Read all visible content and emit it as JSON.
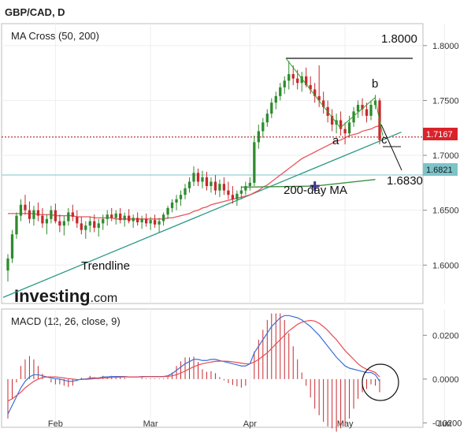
{
  "header": {
    "title": "GBP/CAD, D"
  },
  "price_panel": {
    "indicator_label": "MA Cross (50, 200)",
    "watermark_main": "Investing",
    "watermark_suffix": ".com",
    "annotations": {
      "level_1800": "1.8000",
      "level_1683": "1.6830",
      "ma200": "200-day MA",
      "trendline": "Trendline",
      "a": "a",
      "b": "b",
      "c": "c"
    },
    "price_tag_red": {
      "text": "1.7167",
      "color": "#d9232b"
    },
    "price_tag_teal": {
      "text": "1.6821",
      "color": "#7dc4c9"
    }
  },
  "macd_panel": {
    "label": "MACD (12, 26, close, 9)"
  },
  "colors": {
    "bull": "#2e8b2e",
    "bear": "#c8282d",
    "ma_red": "#e8545a",
    "ma_green": "#3f8f3f",
    "trendline": "#2c9a86",
    "macd_blue": "#3a6fd8",
    "signal_red": "#e84a50"
  },
  "chart_data": [
    {
      "type": "candlestick",
      "title": "GBP/CAD, D",
      "indicator": "MA Cross (50, 200)",
      "ylim": [
        1.565,
        1.82
      ],
      "y_ticks": [
        1.6,
        1.65,
        1.7,
        1.75,
        1.8
      ],
      "y_tick_labels": [
        "1.6000",
        "1.6500",
        "1.7000",
        "1.7500",
        "1.8000"
      ],
      "x_tick_labels": [
        "Feb",
        "Mar",
        "Apr",
        "May",
        "Jun"
      ],
      "x_tick_index": [
        11,
        33,
        56,
        78,
        101
      ],
      "candles": [
        [
          1.595,
          1.61,
          1.585,
          1.606
        ],
        [
          1.606,
          1.632,
          1.602,
          1.628
        ],
        [
          1.628,
          1.648,
          1.624,
          1.645
        ],
        [
          1.645,
          1.66,
          1.64,
          1.655
        ],
        [
          1.655,
          1.664,
          1.646,
          1.65
        ],
        [
          1.65,
          1.658,
          1.638,
          1.642
        ],
        [
          1.642,
          1.654,
          1.636,
          1.65
        ],
        [
          1.65,
          1.657,
          1.64,
          1.645
        ],
        [
          1.645,
          1.652,
          1.634,
          1.638
        ],
        [
          1.638,
          1.646,
          1.628,
          1.642
        ],
        [
          1.642,
          1.654,
          1.638,
          1.65
        ],
        [
          1.65,
          1.656,
          1.638,
          1.64
        ],
        [
          1.64,
          1.646,
          1.63,
          1.636
        ],
        [
          1.636,
          1.645,
          1.627,
          1.64
        ],
        [
          1.64,
          1.652,
          1.636,
          1.648
        ],
        [
          1.648,
          1.655,
          1.64,
          1.644
        ],
        [
          1.644,
          1.65,
          1.634,
          1.638
        ],
        [
          1.638,
          1.644,
          1.628,
          1.632
        ],
        [
          1.632,
          1.64,
          1.624,
          1.636
        ],
        [
          1.636,
          1.644,
          1.63,
          1.64
        ],
        [
          1.64,
          1.646,
          1.63,
          1.634
        ],
        [
          1.634,
          1.642,
          1.626,
          1.638
        ],
        [
          1.638,
          1.646,
          1.632,
          1.642
        ],
        [
          1.642,
          1.65,
          1.636,
          1.646
        ],
        [
          1.646,
          1.652,
          1.64,
          1.643
        ],
        [
          1.643,
          1.65,
          1.637,
          1.647
        ],
        [
          1.647,
          1.652,
          1.638,
          1.641
        ],
        [
          1.641,
          1.648,
          1.635,
          1.645
        ],
        [
          1.645,
          1.651,
          1.638,
          1.64
        ],
        [
          1.64,
          1.646,
          1.634,
          1.643
        ],
        [
          1.643,
          1.648,
          1.636,
          1.639
        ],
        [
          1.639,
          1.645,
          1.633,
          1.642
        ],
        [
          1.642,
          1.647,
          1.635,
          1.638
        ],
        [
          1.638,
          1.644,
          1.632,
          1.641
        ],
        [
          1.641,
          1.646,
          1.634,
          1.637
        ],
        [
          1.637,
          1.643,
          1.63,
          1.64
        ],
        [
          1.64,
          1.648,
          1.636,
          1.646
        ],
        [
          1.646,
          1.654,
          1.642,
          1.652
        ],
        [
          1.652,
          1.66,
          1.648,
          1.657
        ],
        [
          1.657,
          1.664,
          1.65,
          1.66
        ],
        [
          1.66,
          1.668,
          1.654,
          1.664
        ],
        [
          1.664,
          1.674,
          1.66,
          1.67
        ],
        [
          1.67,
          1.68,
          1.666,
          1.676
        ],
        [
          1.676,
          1.69,
          1.672,
          1.684
        ],
        [
          1.684,
          1.688,
          1.672,
          1.676
        ],
        [
          1.676,
          1.686,
          1.67,
          1.68
        ],
        [
          1.68,
          1.685,
          1.668,
          1.672
        ],
        [
          1.672,
          1.68,
          1.666,
          1.676
        ],
        [
          1.676,
          1.682,
          1.664,
          1.668
        ],
        [
          1.668,
          1.678,
          1.662,
          1.674
        ],
        [
          1.674,
          1.68,
          1.664,
          1.668
        ],
        [
          1.668,
          1.676,
          1.66,
          1.664
        ],
        [
          1.664,
          1.672,
          1.656,
          1.66
        ],
        [
          1.66,
          1.668,
          1.654,
          1.665
        ],
        [
          1.665,
          1.672,
          1.66,
          1.668
        ],
        [
          1.668,
          1.676,
          1.664,
          1.672
        ],
        [
          1.672,
          1.68,
          1.668,
          1.675
        ],
        [
          1.675,
          1.718,
          1.672,
          1.712
        ],
        [
          1.712,
          1.728,
          1.706,
          1.722
        ],
        [
          1.722,
          1.734,
          1.716,
          1.73
        ],
        [
          1.73,
          1.742,
          1.726,
          1.738
        ],
        [
          1.738,
          1.752,
          1.734,
          1.748
        ],
        [
          1.748,
          1.758,
          1.742,
          1.754
        ],
        [
          1.754,
          1.766,
          1.75,
          1.762
        ],
        [
          1.762,
          1.772,
          1.756,
          1.768
        ],
        [
          1.768,
          1.786,
          1.76,
          1.774
        ],
        [
          1.774,
          1.782,
          1.764,
          1.77
        ],
        [
          1.77,
          1.778,
          1.76,
          1.766
        ],
        [
          1.766,
          1.776,
          1.758,
          1.772
        ],
        [
          1.772,
          1.78,
          1.762,
          1.764
        ],
        [
          1.764,
          1.772,
          1.756,
          1.76
        ],
        [
          1.76,
          1.766,
          1.748,
          1.754
        ],
        [
          1.754,
          1.782,
          1.744,
          1.75
        ],
        [
          1.75,
          1.758,
          1.738,
          1.744
        ],
        [
          1.744,
          1.75,
          1.73,
          1.736
        ],
        [
          1.736,
          1.742,
          1.722,
          1.728
        ],
        [
          1.728,
          1.738,
          1.72,
          1.732
        ],
        [
          1.732,
          1.74,
          1.718,
          1.724
        ],
        [
          1.724,
          1.73,
          1.71,
          1.72
        ],
        [
          1.72,
          1.736,
          1.716,
          1.73
        ],
        [
          1.73,
          1.744,
          1.726,
          1.74
        ],
        [
          1.74,
          1.75,
          1.734,
          1.746
        ],
        [
          1.746,
          1.752,
          1.736,
          1.742
        ],
        [
          1.742,
          1.748,
          1.73,
          1.736
        ],
        [
          1.736,
          1.75,
          1.732,
          1.746
        ],
        [
          1.746,
          1.755,
          1.742,
          1.75
        ],
        [
          1.75,
          1.752,
          1.71,
          1.714
        ]
      ],
      "ma_red": [
        1.647,
        1.647,
        1.647,
        1.647,
        1.647,
        1.647,
        1.647,
        1.646,
        1.646,
        1.646,
        1.646,
        1.645,
        1.645,
        1.645,
        1.645,
        1.645,
        1.644,
        1.644,
        1.644,
        1.644,
        1.643,
        1.643,
        1.643,
        1.643,
        1.643,
        1.642,
        1.642,
        1.642,
        1.642,
        1.642,
        1.642,
        1.642,
        1.642,
        1.642,
        1.642,
        1.642,
        1.642,
        1.643,
        1.643,
        1.644,
        1.645,
        1.646,
        1.647,
        1.649,
        1.65,
        1.652,
        1.653,
        1.655,
        1.656,
        1.657,
        1.658,
        1.659,
        1.66,
        1.661,
        1.662,
        1.663,
        1.664,
        1.666,
        1.668,
        1.671,
        1.673,
        1.676,
        1.679,
        1.682,
        1.685,
        1.688,
        1.691,
        1.694,
        1.697,
        1.699,
        1.701,
        1.703,
        1.705,
        1.707,
        1.709,
        1.711,
        1.713,
        1.714,
        1.716,
        1.718,
        1.719,
        1.72,
        1.722,
        1.723,
        1.724,
        1.726,
        1.727
      ],
      "ma_green_x_index": [
        54,
        71,
        85
      ],
      "ma_green": [
        1.671,
        1.672,
        1.678
      ],
      "trendline_points": [
        [
          0,
          1.572
        ],
        [
          87,
          1.714
        ]
      ],
      "horizontal_levels": [
        1.7167,
        1.6821
      ],
      "cross_marker": [
        71,
        1.672
      ]
    },
    {
      "type": "line+histogram",
      "title": "MACD (12, 26, close, 9)",
      "ylim": [
        -0.022,
        0.032
      ],
      "y_ticks": [
        -0.02,
        0.0,
        0.02
      ],
      "y_tick_labels": [
        "-0.0200",
        "0.0000",
        "0.0200"
      ],
      "x_tick_labels": [
        "Feb",
        "Mar",
        "Apr",
        "May",
        "Jun"
      ],
      "series": [
        {
          "key": "macd",
          "values": [
            -0.016,
            -0.012,
            -0.008,
            -0.004,
            -0.001,
            0.001,
            0.002,
            0.002,
            0.0015,
            0.001,
            0.0005,
            0.0002,
            0.0,
            -0.0005,
            -0.001,
            -0.001,
            -0.0005,
            0.0,
            0.0,
            0.0005,
            0.0005,
            0.0005,
            0.001,
            0.001,
            0.0012,
            0.0012,
            0.0012,
            0.0012,
            0.001,
            0.001,
            0.001,
            0.0012,
            0.0012,
            0.0012,
            0.0012,
            0.0012,
            0.0012,
            0.0015,
            0.0025,
            0.004,
            0.0055,
            0.007,
            0.008,
            0.009,
            0.009,
            0.0085,
            0.0085,
            0.009,
            0.009,
            0.0085,
            0.008,
            0.0075,
            0.007,
            0.0065,
            0.006,
            0.006,
            0.007,
            0.012,
            0.015,
            0.018,
            0.021,
            0.024,
            0.026,
            0.028,
            0.029,
            0.029,
            0.0285,
            0.028,
            0.027,
            0.0255,
            0.024,
            0.022,
            0.02,
            0.0175,
            0.015,
            0.0125,
            0.01,
            0.008,
            0.006,
            0.005,
            0.0045,
            0.004,
            0.0035,
            0.003,
            0.003,
            0.002,
            -0.001
          ]
        },
        {
          "key": "signal",
          "values": [
            -0.01,
            -0.009,
            -0.0075,
            -0.006,
            -0.004,
            -0.0025,
            -0.001,
            0.0,
            0.0007,
            0.001,
            0.001,
            0.001,
            0.0008,
            0.0005,
            0.0002,
            0.0,
            -0.0002,
            -0.0002,
            -0.0001,
            0.0,
            0.0002,
            0.0003,
            0.0005,
            0.0006,
            0.0007,
            0.0008,
            0.0009,
            0.001,
            0.001,
            0.001,
            0.001,
            0.001,
            0.0011,
            0.0011,
            0.0011,
            0.0011,
            0.0011,
            0.0012,
            0.0015,
            0.002,
            0.0028,
            0.0037,
            0.0047,
            0.0056,
            0.0064,
            0.007,
            0.0074,
            0.0078,
            0.0081,
            0.0082,
            0.0082,
            0.0081,
            0.0079,
            0.0076,
            0.0073,
            0.007,
            0.007,
            0.0078,
            0.009,
            0.0105,
            0.012,
            0.014,
            0.016,
            0.018,
            0.02,
            0.022,
            0.0235,
            0.025,
            0.026,
            0.0265,
            0.0268,
            0.0265,
            0.0255,
            0.024,
            0.0222,
            0.02,
            0.018,
            0.0155,
            0.013,
            0.011,
            0.009,
            0.007,
            0.0055,
            0.0045,
            0.0038,
            0.003,
            0.001
          ]
        }
      ]
    }
  ]
}
